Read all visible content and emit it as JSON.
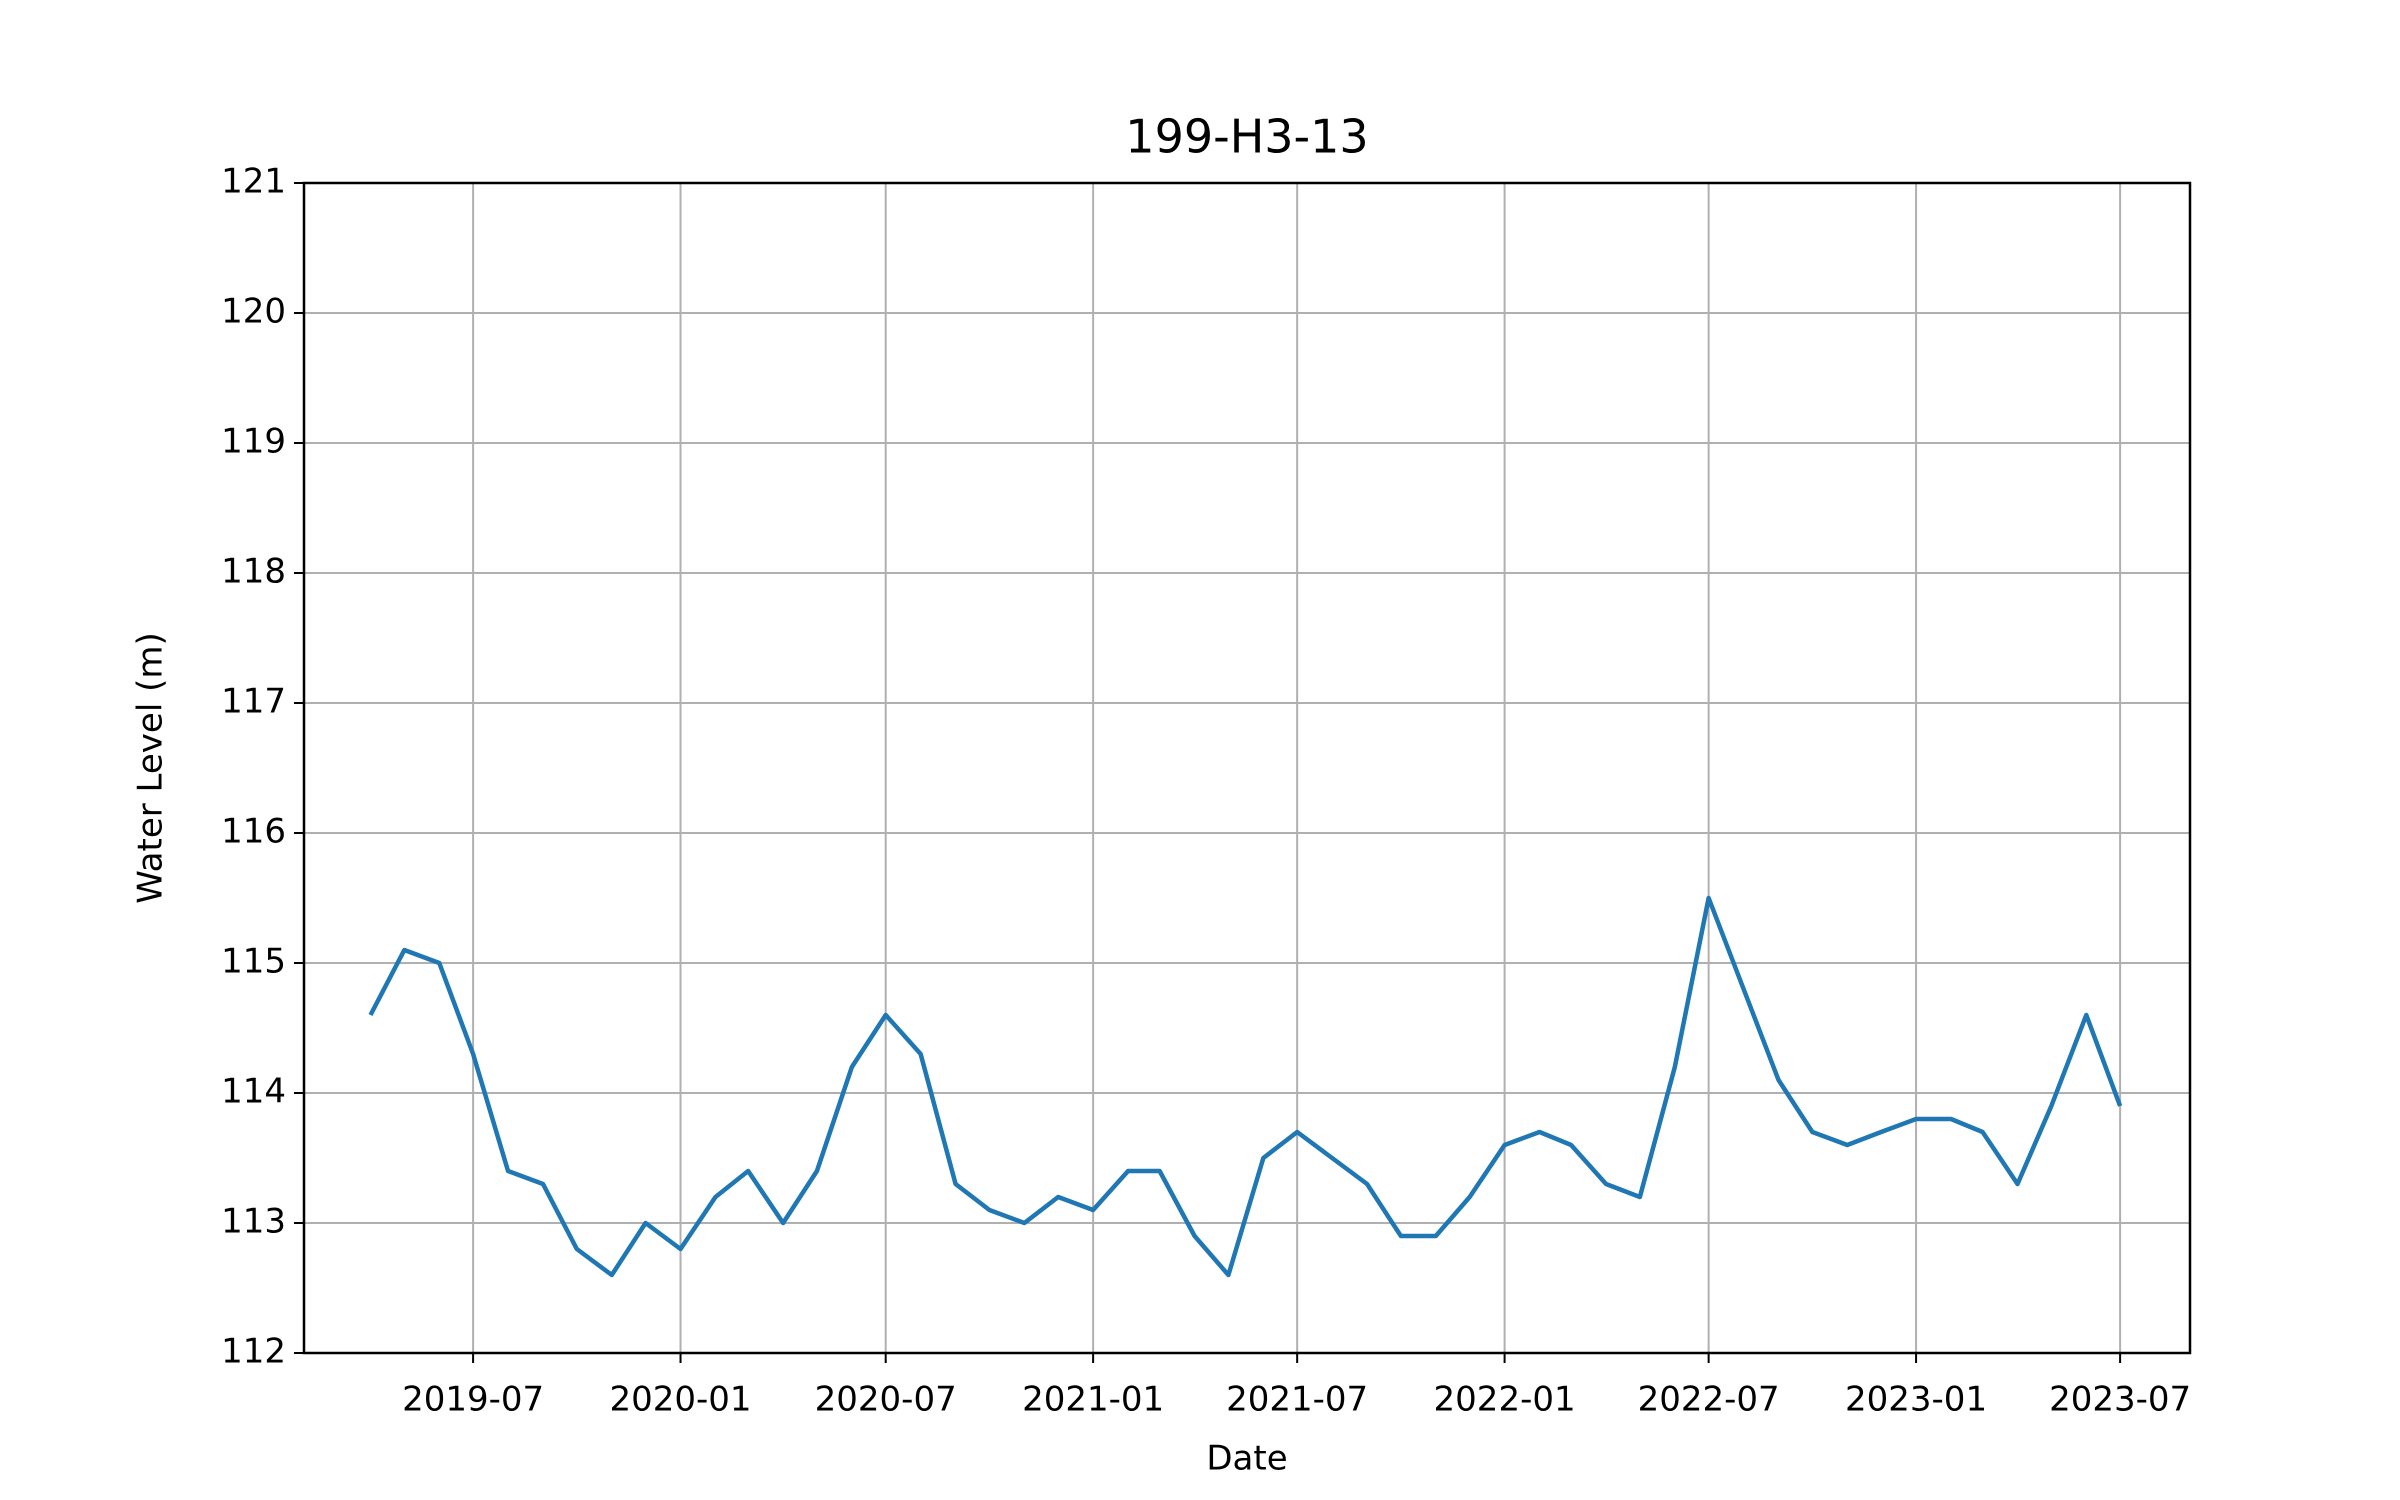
{
  "chart_data": {
    "type": "line",
    "title": "199-H3-13",
    "x_label": "Date",
    "y_label": "Water Level (m)",
    "x": [
      "2019-04",
      "2019-05",
      "2019-06",
      "2019-07",
      "2019-08",
      "2019-09",
      "2019-10",
      "2019-11",
      "2019-12",
      "2020-01",
      "2020-02",
      "2020-03",
      "2020-04",
      "2020-05",
      "2020-06",
      "2020-07",
      "2020-08",
      "2020-09",
      "2020-10",
      "2020-11",
      "2020-12",
      "2021-01",
      "2021-02",
      "2021-03",
      "2021-04",
      "2021-05",
      "2021-06",
      "2021-07",
      "2021-08",
      "2021-09",
      "2021-10",
      "2021-11",
      "2021-12",
      "2022-01",
      "2022-02",
      "2022-03",
      "2022-04",
      "2022-05",
      "2022-06",
      "2022-07",
      "2022-08",
      "2022-09",
      "2022-10",
      "2022-11",
      "2022-12",
      "2023-01",
      "2023-02",
      "2023-03",
      "2023-04",
      "2023-05",
      "2023-06",
      "2023-07"
    ],
    "series": [
      {
        "color": "#1f77b4",
        "values": [
          114.6,
          115.1,
          115.0,
          114.3,
          113.4,
          113.3,
          112.8,
          112.6,
          113.0,
          112.8,
          113.2,
          113.4,
          113.0,
          113.4,
          114.2,
          114.6,
          114.3,
          113.3,
          113.1,
          113.0,
          113.2,
          113.1,
          113.4,
          113.4,
          112.9,
          112.6,
          113.5,
          113.7,
          113.5,
          113.3,
          112.9,
          112.9,
          113.2,
          113.6,
          113.7,
          113.6,
          113.3,
          113.2,
          114.2,
          115.5,
          114.8,
          114.1,
          113.7,
          113.6,
          113.7,
          113.8,
          113.8,
          113.7,
          113.3,
          113.9,
          114.6,
          113.9
        ]
      }
    ],
    "xlim": [
      "2019-02",
      "2023-09"
    ],
    "xticks": [
      "2019-07",
      "2020-01",
      "2020-07",
      "2021-01",
      "2021-07",
      "2022-01",
      "2022-07",
      "2023-01",
      "2023-07"
    ],
    "ylim": [
      112,
      121
    ],
    "yticks": [
      112,
      113,
      114,
      115,
      116,
      117,
      118,
      119,
      120,
      121
    ],
    "grid": true
  }
}
